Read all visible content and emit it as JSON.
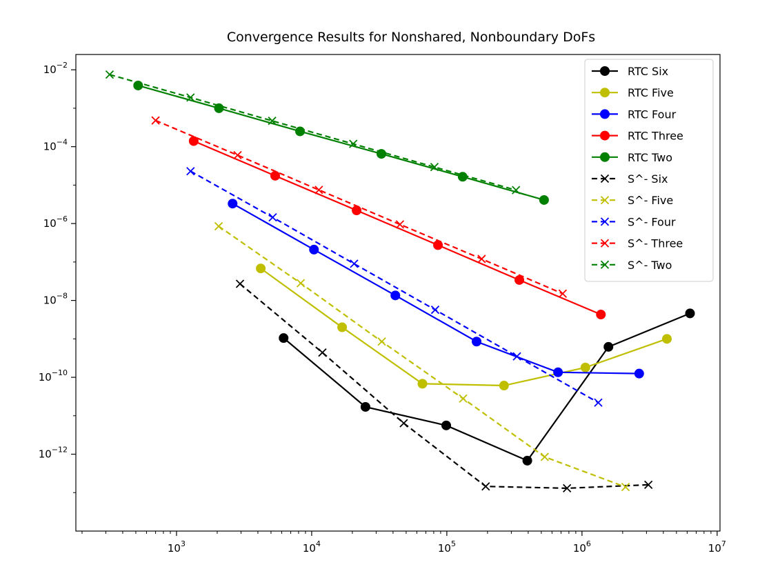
{
  "chart_data": {
    "type": "line",
    "title": "Convergence Results for Nonshared, Nonboundary DoFs",
    "xlabel": "",
    "ylabel": "",
    "xscale": "log",
    "yscale": "log",
    "xlim": [
      180,
      10500000
    ],
    "ylim": [
      1e-14,
      0.025
    ],
    "x_ticks": [
      {
        "base": "10",
        "exp": "3",
        "value": 1000
      },
      {
        "base": "10",
        "exp": "4",
        "value": 10000
      },
      {
        "base": "10",
        "exp": "5",
        "value": 100000
      },
      {
        "base": "10",
        "exp": "6",
        "value": 1000000
      },
      {
        "base": "10",
        "exp": "7",
        "value": 10000000
      }
    ],
    "y_ticks": [
      {
        "base": "10",
        "exp": "−2",
        "value": 0.01
      },
      {
        "base": "10",
        "exp": "−4",
        "value": 0.0001
      },
      {
        "base": "10",
        "exp": "−6",
        "value": 1e-06
      },
      {
        "base": "10",
        "exp": "−8",
        "value": 1e-08
      },
      {
        "base": "10",
        "exp": "−10",
        "value": 1e-10
      },
      {
        "base": "10",
        "exp": "−12",
        "value": 1e-12
      }
    ],
    "grid": false,
    "legend_position": "top-right",
    "series": [
      {
        "name": "RTC Six",
        "color": "#000000",
        "linestyle": "solid",
        "marker": "circle",
        "x": [
          6200,
          25000,
          99000,
          394000,
          1570000,
          6300000
        ],
        "y": [
          1.05e-09,
          1.7e-11,
          5.6e-12,
          6.8e-13,
          6.2e-10,
          4.6e-09
        ]
      },
      {
        "name": "RTC Five",
        "color": "#bfbf00",
        "linestyle": "solid",
        "marker": "circle",
        "x": [
          4200,
          16800,
          66000,
          265000,
          1060000,
          4250000
        ],
        "y": [
          6.8e-08,
          2e-09,
          6.8e-11,
          6.1e-11,
          1.8e-10,
          1e-09
        ]
      },
      {
        "name": "RTC Four",
        "color": "#0000ff",
        "linestyle": "solid",
        "marker": "circle",
        "x": [
          2600,
          10400,
          41600,
          166000,
          665000,
          2650000
        ],
        "y": [
          3.3e-06,
          2.1e-07,
          1.35e-08,
          8.5e-10,
          1.35e-10,
          1.25e-10
        ]
      },
      {
        "name": "RTC Three",
        "color": "#ff0000",
        "linestyle": "solid",
        "marker": "circle",
        "x": [
          1340,
          5370,
          21500,
          86000,
          344000,
          1380000
        ],
        "y": [
          0.00014,
          1.75e-05,
          2.2e-06,
          2.75e-07,
          3.4e-08,
          4.3e-09
        ]
      },
      {
        "name": "RTC Two",
        "color": "#008000",
        "linestyle": "solid",
        "marker": "circle",
        "x": [
          520,
          2060,
          8200,
          32800,
          131000,
          524000
        ],
        "y": [
          0.0039,
          0.001,
          0.00025,
          6.5e-05,
          1.65e-05,
          4.1e-06
        ]
      },
      {
        "name": "S^- Six",
        "color": "#000000",
        "linestyle": "dashed",
        "marker": "x",
        "x": [
          2950,
          12000,
          48000,
          194000,
          775000,
          3100000
        ],
        "y": [
          2.7e-08,
          4.4e-10,
          6.4e-12,
          1.45e-13,
          1.3e-13,
          1.6e-13
        ]
      },
      {
        "name": "S^- Five",
        "color": "#bfbf00",
        "linestyle": "dashed",
        "marker": "x",
        "x": [
          2050,
          8300,
          33000,
          132000,
          530000,
          2100000
        ],
        "y": [
          8.5e-07,
          2.8e-08,
          8.5e-10,
          2.8e-11,
          8.5e-13,
          1.4e-13
        ]
      },
      {
        "name": "S^- Four",
        "color": "#0000ff",
        "linestyle": "dashed",
        "marker": "x",
        "x": [
          1270,
          5150,
          20600,
          82000,
          330000,
          1320000
        ],
        "y": [
          2.3e-05,
          1.45e-06,
          9e-08,
          5.7e-09,
          3.5e-10,
          2.2e-11
        ]
      },
      {
        "name": "S^- Three",
        "color": "#ff0000",
        "linestyle": "dashed",
        "marker": "x",
        "x": [
          700,
          2830,
          11300,
          45000,
          181000,
          720000
        ],
        "y": [
          0.00048,
          6e-05,
          7.5e-06,
          9.5e-07,
          1.2e-07,
          1.5e-08
        ]
      },
      {
        "name": "S^- Two",
        "color": "#008000",
        "linestyle": "dashed",
        "marker": "x",
        "x": [
          320,
          1270,
          5100,
          20300,
          81000,
          325000
        ],
        "y": [
          0.0075,
          0.0019,
          0.00047,
          0.000118,
          2.95e-05,
          7.4e-06
        ]
      }
    ]
  }
}
